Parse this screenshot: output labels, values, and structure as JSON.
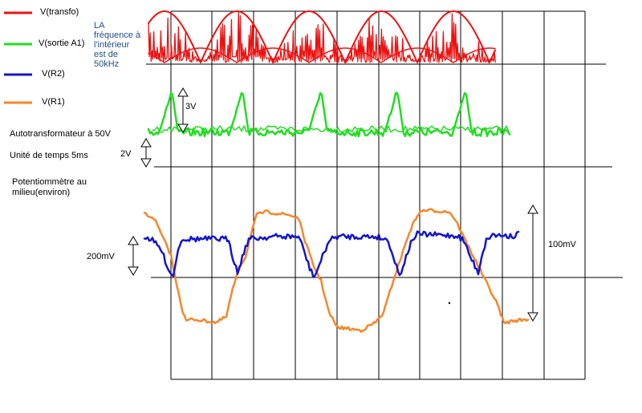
{
  "legend": [
    {
      "label": "V(transfo)",
      "color": "#ee1111"
    },
    {
      "label": "V(sortie A1)",
      "color": "#22dd22"
    },
    {
      "label": "V(R2)",
      "color": "#1515cc"
    },
    {
      "label": "V(R1)",
      "color": "#f7862a"
    }
  ],
  "note": {
    "line1": "LA",
    "line2": "fréquence à",
    "line3": "l'intérieur",
    "line4": "est de",
    "line5": "50kHz"
  },
  "info": {
    "autotransformer": "Autotransformateur à  50V",
    "time_unit": "Unité de temps 5ms",
    "pot_line1": "Potentiommètre au",
    "pot_line2": "milieu(environ)"
  },
  "scale_labels": {
    "green_amp": "3V",
    "green_div": "2V",
    "lower_div": "200mV",
    "right_amp": "100mV"
  },
  "colors": {
    "transfo": "#ee1111",
    "sortie": "#22dd22",
    "r2": "#1515cc",
    "r1": "#f7862a",
    "grid": "#000000",
    "note_text": "#1f4e8c"
  }
}
